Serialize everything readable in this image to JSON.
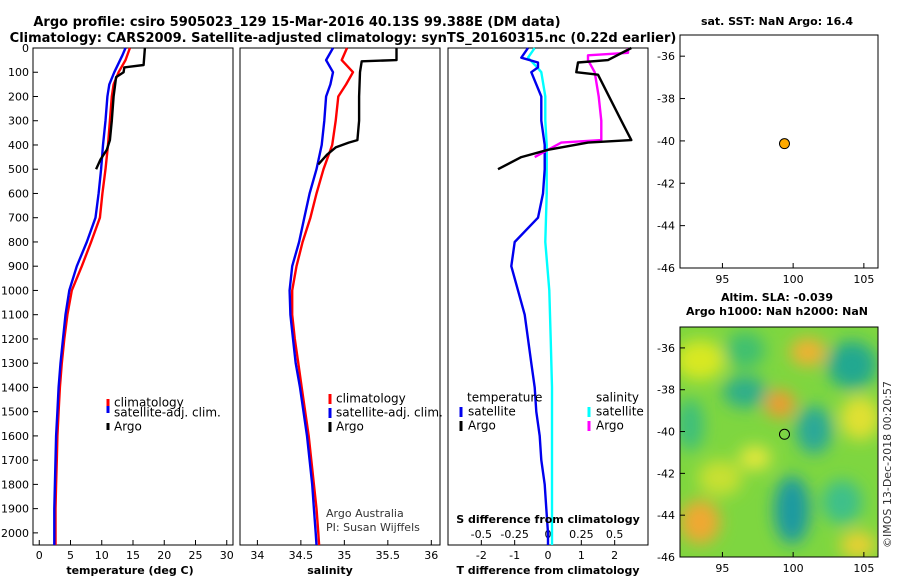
{
  "title_line1": "Argo profile: csiro 5905023_129 15-Mar-2016 40.13S 99.388E (DM data)",
  "title_line2": "Climatology: CARS2009. Satellite-adjusted climatology: synTS_20160315.nc (0.22d earlier)",
  "colors": {
    "climatology": "#ff0000",
    "satellite": "#0000ee",
    "argo": "#000000",
    "sat_sal_diff": "#00ffff",
    "argo_sal_diff": "#ff00ff",
    "marker": "#ffaa00"
  },
  "depth_ticks": [
    "0",
    "100",
    "200",
    "300",
    "400",
    "500",
    "600",
    "700",
    "800",
    "900",
    "1000",
    "1100",
    "1200",
    "1300",
    "1400",
    "1500",
    "1600",
    "1700",
    "1800",
    "1900",
    "2000"
  ],
  "temperature_panel": {
    "xlabel": "temperature (deg C)",
    "xticks": [
      "0",
      "5",
      "10",
      "15",
      "20",
      "25",
      "30"
    ],
    "legend": [
      "climatology",
      "satellite-adj. clim.",
      "Argo"
    ]
  },
  "salinity_panel": {
    "xlabel": "salinity",
    "xticks": [
      "34",
      "34.5",
      "35",
      "35.5",
      "36"
    ],
    "legend": [
      "climatology",
      "satellite-adj. clim.",
      "Argo"
    ],
    "credit_line1": "Argo Australia",
    "credit_line2": "PI: Susan Wijffels"
  },
  "difference_panel": {
    "xlabel": "T difference from climatology",
    "xticks": [
      "-2",
      "-1",
      "0",
      "1",
      "2"
    ],
    "top_label": "S difference from climatology",
    "top_ticks": [
      "-0.5",
      "-0.25",
      "0",
      "0.25",
      "0.5"
    ],
    "legend_temp_header": "temperature",
    "legend_sal_header": "salinity",
    "legend_temp": [
      "satellite",
      "Argo"
    ],
    "legend_sal": [
      "satellite",
      "Argo"
    ]
  },
  "sst_map": {
    "title": "sat. SST: NaN Argo: 16.4",
    "xticks": [
      "95",
      "100",
      "105"
    ],
    "yticks": [
      "-36",
      "-38",
      "-40",
      "-42",
      "-44",
      "-46"
    ]
  },
  "sla_map": {
    "title_line1": "Altim. SLA: -0.039",
    "title_line2": "Argo h1000: NaN h2000: NaN",
    "xticks": [
      "95",
      "100",
      "105"
    ],
    "yticks": [
      "-36",
      "-38",
      "-40",
      "-42",
      "-44",
      "-46"
    ]
  },
  "watermark": "©IMOS 13-Dec-2018 00:20:57",
  "chart_data": {
    "type": "line",
    "depth_range": [
      0,
      2050
    ],
    "temperature": {
      "xlim": [
        -1,
        31
      ],
      "climatology": [
        [
          14.5,
          0
        ],
        [
          13.8,
          50
        ],
        [
          12.7,
          100
        ],
        [
          11.9,
          150
        ],
        [
          11.6,
          200
        ],
        [
          11.3,
          300
        ],
        [
          11,
          400
        ],
        [
          10.6,
          500
        ],
        [
          10.1,
          600
        ],
        [
          9.7,
          700
        ],
        [
          8.3,
          800
        ],
        [
          6.8,
          900
        ],
        [
          5.2,
          1000
        ],
        [
          4.5,
          1100
        ],
        [
          4,
          1200
        ],
        [
          3.6,
          1300
        ],
        [
          3.3,
          1400
        ],
        [
          3.1,
          1500
        ],
        [
          2.9,
          1600
        ],
        [
          2.8,
          1700
        ],
        [
          2.7,
          1800
        ],
        [
          2.6,
          1900
        ],
        [
          2.6,
          2000
        ],
        [
          2.6,
          2050
        ]
      ],
      "satellite": [
        [
          13.8,
          0
        ],
        [
          13.3,
          30
        ],
        [
          12,
          100
        ],
        [
          11.2,
          150
        ],
        [
          10.9,
          200
        ],
        [
          10.6,
          300
        ],
        [
          10.2,
          400
        ],
        [
          9.9,
          500
        ],
        [
          9.5,
          600
        ],
        [
          9,
          700
        ],
        [
          7.6,
          800
        ],
        [
          6,
          900
        ],
        [
          4.8,
          1000
        ],
        [
          4.2,
          1100
        ],
        [
          3.8,
          1200
        ],
        [
          3.4,
          1300
        ],
        [
          3.1,
          1400
        ],
        [
          2.9,
          1500
        ],
        [
          2.7,
          1600
        ],
        [
          2.6,
          1700
        ],
        [
          2.5,
          1800
        ],
        [
          2.4,
          1900
        ],
        [
          2.4,
          2000
        ],
        [
          2.4,
          2050
        ]
      ],
      "argo": [
        [
          16.9,
          0
        ],
        [
          16.7,
          70
        ],
        [
          13.6,
          80
        ],
        [
          13.5,
          100
        ],
        [
          12.3,
          120
        ],
        [
          11.9,
          200
        ],
        [
          11.6,
          300
        ],
        [
          11.3,
          380
        ],
        [
          10.8,
          420
        ],
        [
          9.8,
          460
        ],
        [
          9.1,
          500
        ]
      ]
    },
    "salinity": {
      "xlim": [
        33.8,
        36.1
      ],
      "climatology": [
        [
          35.03,
          0
        ],
        [
          34.97,
          50
        ],
        [
          35.1,
          100
        ],
        [
          35.02,
          150
        ],
        [
          34.93,
          200
        ],
        [
          34.9,
          300
        ],
        [
          34.86,
          400
        ],
        [
          34.76,
          500
        ],
        [
          34.68,
          600
        ],
        [
          34.61,
          700
        ],
        [
          34.52,
          800
        ],
        [
          34.45,
          900
        ],
        [
          34.4,
          1000
        ],
        [
          34.4,
          1100
        ],
        [
          34.43,
          1200
        ],
        [
          34.47,
          1300
        ],
        [
          34.51,
          1400
        ],
        [
          34.55,
          1500
        ],
        [
          34.59,
          1600
        ],
        [
          34.62,
          1700
        ],
        [
          34.65,
          1800
        ],
        [
          34.68,
          1900
        ],
        [
          34.7,
          2000
        ],
        [
          34.71,
          2050
        ]
      ],
      "satellite": [
        [
          34.87,
          0
        ],
        [
          34.79,
          50
        ],
        [
          34.87,
          100
        ],
        [
          34.84,
          150
        ],
        [
          34.79,
          200
        ],
        [
          34.77,
          300
        ],
        [
          34.74,
          400
        ],
        [
          34.68,
          500
        ],
        [
          34.6,
          600
        ],
        [
          34.54,
          700
        ],
        [
          34.48,
          800
        ],
        [
          34.4,
          900
        ],
        [
          34.37,
          1000
        ],
        [
          34.38,
          1100
        ],
        [
          34.41,
          1200
        ],
        [
          34.44,
          1300
        ],
        [
          34.49,
          1400
        ],
        [
          34.53,
          1500
        ],
        [
          34.57,
          1600
        ],
        [
          34.6,
          1700
        ],
        [
          34.63,
          1800
        ],
        [
          34.65,
          1900
        ],
        [
          34.67,
          2000
        ],
        [
          34.68,
          2050
        ]
      ],
      "argo": [
        [
          35.6,
          0
        ],
        [
          35.6,
          50
        ],
        [
          35.2,
          55
        ],
        [
          35.18,
          100
        ],
        [
          35.17,
          200
        ],
        [
          35.17,
          300
        ],
        [
          35.15,
          380
        ],
        [
          35.05,
          390
        ],
        [
          34.9,
          410
        ],
        [
          34.8,
          440
        ],
        [
          34.7,
          480
        ]
      ]
    },
    "differences": {
      "xlim": [
        -3,
        3
      ],
      "s_xlim": [
        -0.75,
        0.75
      ],
      "temp_satellite": [
        [
          -0.6,
          0
        ],
        [
          -0.8,
          40
        ],
        [
          -0.3,
          60
        ],
        [
          -0.3,
          80
        ],
        [
          -0.5,
          100
        ],
        [
          -0.2,
          200
        ],
        [
          -0.2,
          300
        ],
        [
          -0.1,
          400
        ],
        [
          -0.1,
          500
        ],
        [
          -0.15,
          600
        ],
        [
          -0.3,
          700
        ],
        [
          -1,
          800
        ],
        [
          -1.1,
          900
        ],
        [
          -0.9,
          1000
        ],
        [
          -0.7,
          1100
        ],
        [
          -0.6,
          1200
        ],
        [
          -0.5,
          1300
        ],
        [
          -0.4,
          1400
        ],
        [
          -0.35,
          1500
        ],
        [
          -0.25,
          1600
        ],
        [
          -0.2,
          1700
        ],
        [
          -0.1,
          1800
        ],
        [
          -0.05,
          1900
        ],
        [
          0,
          2000
        ],
        [
          0,
          2050
        ]
      ],
      "temp_argo": [
        [
          2.5,
          0
        ],
        [
          1.8,
          50
        ],
        [
          0.9,
          60
        ],
        [
          0.85,
          100
        ],
        [
          1.5,
          110
        ],
        [
          2.2,
          300
        ],
        [
          2.5,
          380
        ],
        [
          1.2,
          390
        ],
        [
          0,
          420
        ],
        [
          -0.8,
          450
        ],
        [
          -1.5,
          500
        ]
      ],
      "sal_satellite": [
        [
          -0.1,
          0
        ],
        [
          -0.15,
          40
        ],
        [
          -0.08,
          80
        ],
        [
          -0.05,
          100
        ],
        [
          -0.02,
          200
        ],
        [
          -0.02,
          300
        ],
        [
          -0.01,
          400
        ],
        [
          -0.01,
          500
        ],
        [
          -0.01,
          600
        ],
        [
          -0.02,
          800
        ],
        [
          0.01,
          1000
        ],
        [
          0.02,
          1200
        ],
        [
          0.03,
          1400
        ],
        [
          0.03,
          1600
        ],
        [
          0.03,
          1800
        ],
        [
          0.03,
          2000
        ],
        [
          0.03,
          2050
        ]
      ],
      "sal_argo": [
        [
          0.6,
          0
        ],
        [
          0.6,
          20
        ],
        [
          0.3,
          30
        ],
        [
          0.3,
          50
        ],
        [
          0.35,
          100
        ],
        [
          0.38,
          200
        ],
        [
          0.4,
          300
        ],
        [
          0.4,
          380
        ],
        [
          0.1,
          390
        ],
        [
          0,
          420
        ],
        [
          -0.1,
          450
        ]
      ]
    },
    "sst_map": {
      "xlim": [
        92,
        106
      ],
      "ylim": [
        -46,
        -35
      ],
      "argo_position": [
        99.388,
        -40.13
      ],
      "argo_sst": 16.4,
      "sat_sst": "NaN"
    },
    "sla_map": {
      "xlim": [
        92,
        106
      ],
      "ylim": [
        -46,
        -35
      ],
      "argo_position": [
        99.388,
        -40.13
      ],
      "sla": -0.039
    }
  }
}
